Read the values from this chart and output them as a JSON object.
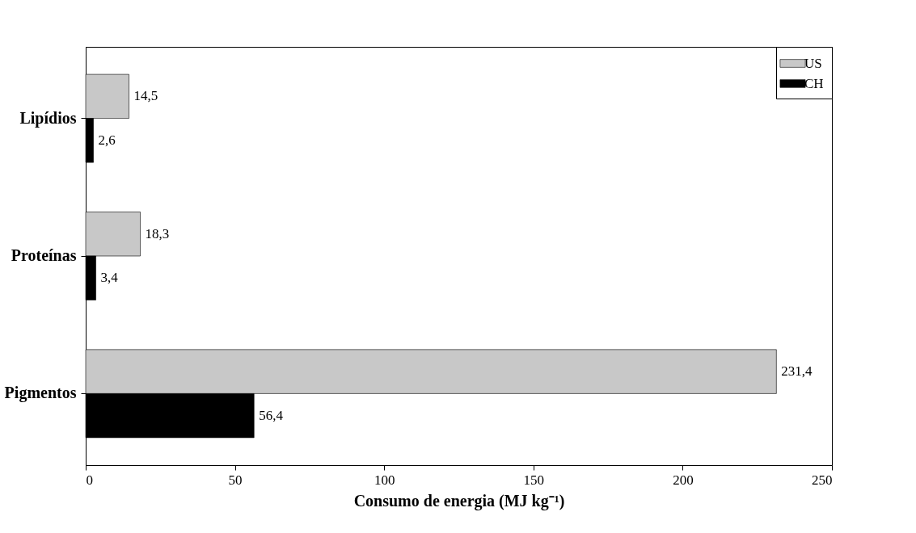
{
  "chart_data": {
    "type": "bar",
    "orientation": "horizontal",
    "xlabel": "Consumo de energia (MJ kg⁻¹)",
    "categories": [
      "Lipídios",
      "Proteínas",
      "Pigmentos"
    ],
    "series": [
      {
        "name": "US",
        "color": "#c8c8c8",
        "values": [
          14.5,
          18.3,
          231.4
        ],
        "value_labels": [
          "14,5",
          "18,3",
          "231,4"
        ]
      },
      {
        "name": "CH",
        "color": "#000000",
        "values": [
          2.6,
          3.4,
          56.4
        ],
        "value_labels": [
          "2,6",
          "3,4",
          "56,4"
        ]
      }
    ],
    "xlim": [
      0,
      250
    ],
    "xticks": [
      0,
      50,
      100,
      150,
      200,
      250
    ],
    "grid": false,
    "legend": "top right"
  }
}
